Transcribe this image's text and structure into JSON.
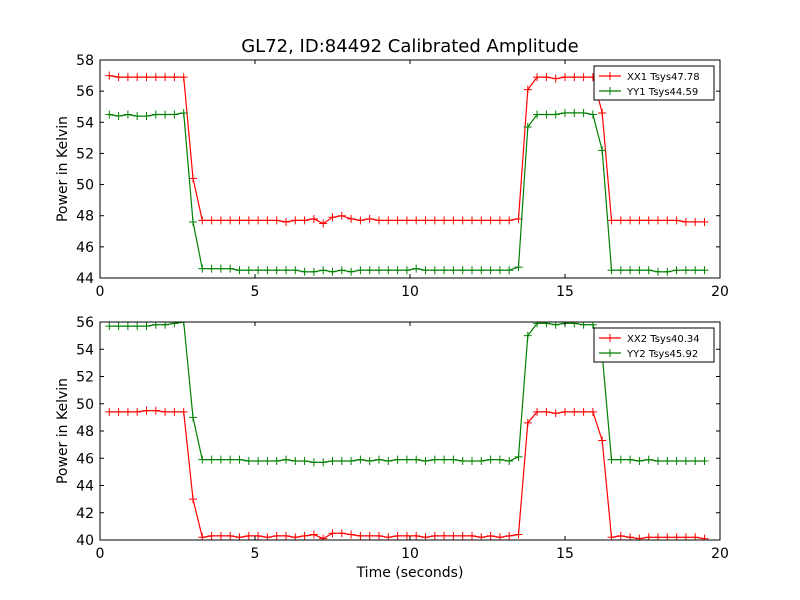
{
  "chart_data": [
    {
      "type": "line",
      "title": "GL72, ID:84492 Calibrated Amplitude",
      "xlabel": "",
      "ylabel": "Power in Kelvin",
      "xlim": [
        0,
        20
      ],
      "ylim": [
        44,
        58
      ],
      "xticks": [
        "0",
        "5",
        "10",
        "15",
        "20"
      ],
      "yticks": [
        "44",
        "46",
        "48",
        "50",
        "52",
        "54",
        "56",
        "58"
      ],
      "legend_position": "top-right",
      "grid": false,
      "series": [
        {
          "name": "XX1 Tsys47.78",
          "color": "#ff0000",
          "x": [
            0.3,
            0.6,
            0.9,
            1.2,
            1.5,
            1.8,
            2.1,
            2.4,
            2.7,
            3.0,
            3.3,
            3.6,
            3.9,
            4.2,
            4.5,
            4.8,
            5.1,
            5.4,
            5.7,
            6.0,
            6.3,
            6.6,
            6.9,
            7.2,
            7.5,
            7.8,
            8.1,
            8.4,
            8.7,
            9.0,
            9.3,
            9.6,
            9.9,
            10.2,
            10.5,
            10.8,
            11.1,
            11.4,
            11.7,
            12.0,
            12.3,
            12.6,
            12.9,
            13.2,
            13.5,
            13.8,
            14.1,
            14.4,
            14.7,
            15.0,
            15.3,
            15.6,
            15.9,
            16.2,
            16.5,
            16.8,
            17.1,
            17.4,
            17.7,
            18.0,
            18.3,
            18.6,
            18.9,
            19.2,
            19.5
          ],
          "y": [
            57.0,
            56.9,
            56.9,
            56.9,
            56.9,
            56.9,
            56.9,
            56.9,
            56.9,
            50.4,
            47.7,
            47.7,
            47.7,
            47.7,
            47.7,
            47.7,
            47.7,
            47.7,
            47.7,
            47.6,
            47.7,
            47.7,
            47.8,
            47.5,
            47.9,
            48.0,
            47.8,
            47.7,
            47.8,
            47.7,
            47.7,
            47.7,
            47.7,
            47.7,
            47.7,
            47.7,
            47.7,
            47.7,
            47.7,
            47.7,
            47.7,
            47.7,
            47.7,
            47.7,
            47.8,
            56.1,
            56.9,
            56.9,
            56.8,
            56.9,
            56.9,
            56.9,
            56.9,
            54.6,
            47.7,
            47.7,
            47.7,
            47.7,
            47.7,
            47.7,
            47.7,
            47.7,
            47.6,
            47.6,
            47.6
          ]
        },
        {
          "name": "YY1 Tsys44.59",
          "color": "#008000",
          "x": [
            0.3,
            0.6,
            0.9,
            1.2,
            1.5,
            1.8,
            2.1,
            2.4,
            2.7,
            3.0,
            3.3,
            3.6,
            3.9,
            4.2,
            4.5,
            4.8,
            5.1,
            5.4,
            5.7,
            6.0,
            6.3,
            6.6,
            6.9,
            7.2,
            7.5,
            7.8,
            8.1,
            8.4,
            8.7,
            9.0,
            9.3,
            9.6,
            9.9,
            10.2,
            10.5,
            10.8,
            11.1,
            11.4,
            11.7,
            12.0,
            12.3,
            12.6,
            12.9,
            13.2,
            13.5,
            13.8,
            14.1,
            14.4,
            14.7,
            15.0,
            15.3,
            15.6,
            15.9,
            16.2,
            16.5,
            16.8,
            17.1,
            17.4,
            17.7,
            18.0,
            18.3,
            18.6,
            18.9,
            19.2,
            19.5
          ],
          "y": [
            54.5,
            54.4,
            54.5,
            54.4,
            54.4,
            54.5,
            54.5,
            54.5,
            54.6,
            47.6,
            44.6,
            44.6,
            44.6,
            44.6,
            44.5,
            44.5,
            44.5,
            44.5,
            44.5,
            44.5,
            44.5,
            44.4,
            44.4,
            44.5,
            44.4,
            44.5,
            44.4,
            44.5,
            44.5,
            44.5,
            44.5,
            44.5,
            44.5,
            44.6,
            44.5,
            44.5,
            44.5,
            44.5,
            44.5,
            44.5,
            44.5,
            44.5,
            44.5,
            44.5,
            44.7,
            53.7,
            54.5,
            54.5,
            54.5,
            54.6,
            54.6,
            54.6,
            54.5,
            52.2,
            44.5,
            44.5,
            44.5,
            44.5,
            44.5,
            44.4,
            44.4,
            44.5,
            44.5,
            44.5,
            44.5
          ]
        }
      ]
    },
    {
      "type": "line",
      "title": "",
      "xlabel": "Time (seconds)",
      "ylabel": "Power in Kelvin",
      "xlim": [
        0,
        20
      ],
      "ylim": [
        40,
        56
      ],
      "xticks": [
        "0",
        "5",
        "10",
        "15",
        "20"
      ],
      "yticks": [
        "40",
        "42",
        "44",
        "46",
        "48",
        "50",
        "52",
        "54",
        "56"
      ],
      "legend_position": "top-right",
      "grid": false,
      "series": [
        {
          "name": "XX2 Tsys40.34",
          "color": "#ff0000",
          "x": [
            0.3,
            0.6,
            0.9,
            1.2,
            1.5,
            1.8,
            2.1,
            2.4,
            2.7,
            3.0,
            3.3,
            3.6,
            3.9,
            4.2,
            4.5,
            4.8,
            5.1,
            5.4,
            5.7,
            6.0,
            6.3,
            6.6,
            6.9,
            7.2,
            7.5,
            7.8,
            8.1,
            8.4,
            8.7,
            9.0,
            9.3,
            9.6,
            9.9,
            10.2,
            10.5,
            10.8,
            11.1,
            11.4,
            11.7,
            12.0,
            12.3,
            12.6,
            12.9,
            13.2,
            13.5,
            13.8,
            14.1,
            14.4,
            14.7,
            15.0,
            15.3,
            15.6,
            15.9,
            16.2,
            16.5,
            16.8,
            17.1,
            17.4,
            17.7,
            18.0,
            18.3,
            18.6,
            18.9,
            19.2,
            19.5
          ],
          "y": [
            49.4,
            49.4,
            49.4,
            49.4,
            49.5,
            49.5,
            49.4,
            49.4,
            49.4,
            43.0,
            40.2,
            40.3,
            40.3,
            40.3,
            40.2,
            40.3,
            40.3,
            40.2,
            40.3,
            40.3,
            40.2,
            40.3,
            40.4,
            40.1,
            40.5,
            40.5,
            40.4,
            40.3,
            40.3,
            40.3,
            40.2,
            40.3,
            40.3,
            40.3,
            40.2,
            40.3,
            40.3,
            40.3,
            40.3,
            40.3,
            40.2,
            40.3,
            40.2,
            40.3,
            40.4,
            48.6,
            49.4,
            49.4,
            49.3,
            49.4,
            49.4,
            49.4,
            49.4,
            47.3,
            40.2,
            40.3,
            40.2,
            40.1,
            40.2,
            40.2,
            40.2,
            40.2,
            40.2,
            40.2,
            40.1
          ]
        },
        {
          "name": "YY2 Tsys45.92",
          "color": "#008000",
          "x": [
            0.3,
            0.6,
            0.9,
            1.2,
            1.5,
            1.8,
            2.1,
            2.4,
            2.7,
            3.0,
            3.3,
            3.6,
            3.9,
            4.2,
            4.5,
            4.8,
            5.1,
            5.4,
            5.7,
            6.0,
            6.3,
            6.6,
            6.9,
            7.2,
            7.5,
            7.8,
            8.1,
            8.4,
            8.7,
            9.0,
            9.3,
            9.6,
            9.9,
            10.2,
            10.5,
            10.8,
            11.1,
            11.4,
            11.7,
            12.0,
            12.3,
            12.6,
            12.9,
            13.2,
            13.5,
            13.8,
            14.1,
            14.4,
            14.7,
            15.0,
            15.3,
            15.6,
            15.9,
            16.2,
            16.5,
            16.8,
            17.1,
            17.4,
            17.7,
            18.0,
            18.3,
            18.6,
            18.9,
            19.2,
            19.5
          ],
          "y": [
            55.7,
            55.7,
            55.7,
            55.7,
            55.7,
            55.8,
            55.8,
            55.9,
            56.0,
            49.0,
            45.9,
            45.9,
            45.9,
            45.9,
            45.9,
            45.8,
            45.8,
            45.8,
            45.8,
            45.9,
            45.8,
            45.8,
            45.7,
            45.7,
            45.8,
            45.8,
            45.8,
            45.9,
            45.8,
            45.9,
            45.8,
            45.9,
            45.9,
            45.9,
            45.8,
            45.9,
            45.9,
            45.9,
            45.8,
            45.8,
            45.8,
            45.9,
            45.9,
            45.8,
            46.1,
            55.0,
            55.9,
            55.9,
            55.8,
            55.9,
            55.9,
            55.8,
            55.8,
            53.6,
            45.9,
            45.9,
            45.9,
            45.8,
            45.9,
            45.8,
            45.8,
            45.8,
            45.8,
            45.8,
            45.8
          ]
        }
      ]
    }
  ]
}
